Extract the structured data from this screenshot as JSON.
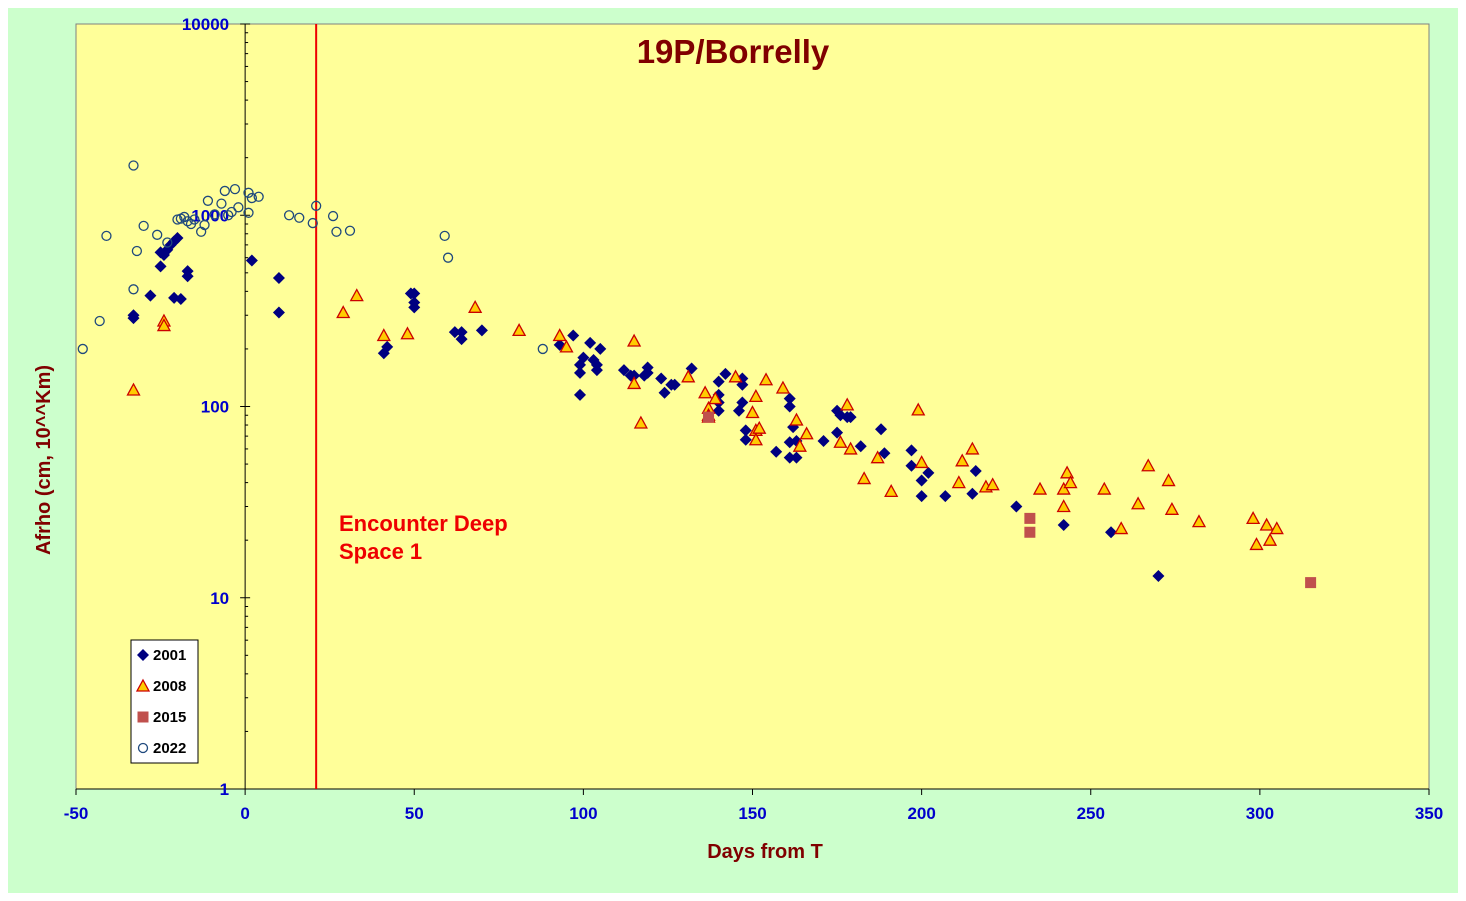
{
  "chart_data": {
    "type": "scatter",
    "title": "19P/Borrelly",
    "xlabel": "Days from  T",
    "ylabel": "Afrho (cm, 10^^Km)",
    "xlim": [
      -50,
      350
    ],
    "ylim": [
      1,
      10000
    ],
    "yscale": "log",
    "x_ticks": [
      -50,
      0,
      50,
      100,
      150,
      200,
      250,
      300,
      350
    ],
    "y_ticks": [
      1,
      10,
      100,
      1000,
      10000
    ],
    "x_tick_labels": [
      "-50",
      "0",
      "50",
      "100",
      "150",
      "200",
      "250",
      "300",
      "350"
    ],
    "y_tick_labels": [
      "1",
      "10",
      "100",
      "1000",
      "10000"
    ],
    "grid": false,
    "legend_position": "bottom-left",
    "plot_bg": "#ffff99",
    "outer_bg": "#ccffcc",
    "vline": {
      "x": 21,
      "label_line1": "Encounter Deep",
      "label_line2": "Space 1",
      "color": "#ee0000"
    },
    "series": [
      {
        "name": "2001",
        "marker": "diamond",
        "color": "#000080",
        "points": [
          [
            -33,
            290
          ],
          [
            -33,
            300
          ],
          [
            -28,
            380
          ],
          [
            -25,
            540
          ],
          [
            -25,
            640
          ],
          [
            -24,
            620
          ],
          [
            -23,
            660
          ],
          [
            -22,
            700
          ],
          [
            -21,
            730
          ],
          [
            -21,
            370
          ],
          [
            -20,
            760
          ],
          [
            -19,
            365
          ],
          [
            -17,
            510
          ],
          [
            -17,
            480
          ],
          [
            2,
            580
          ],
          [
            10,
            470
          ],
          [
            10,
            310
          ],
          [
            41,
            190
          ],
          [
            42,
            205
          ],
          [
            49,
            390
          ],
          [
            50,
            390
          ],
          [
            50,
            350
          ],
          [
            50,
            330
          ],
          [
            62,
            245
          ],
          [
            64,
            245
          ],
          [
            64,
            225
          ],
          [
            70,
            250
          ],
          [
            93,
            210
          ],
          [
            97,
            235
          ],
          [
            99,
            115
          ],
          [
            99,
            150
          ],
          [
            99,
            165
          ],
          [
            100,
            180
          ],
          [
            102,
            215
          ],
          [
            103,
            175
          ],
          [
            104,
            165
          ],
          [
            104,
            155
          ],
          [
            105,
            200
          ],
          [
            112,
            155
          ],
          [
            114,
            145
          ],
          [
            115,
            145
          ],
          [
            118,
            145
          ],
          [
            119,
            160
          ],
          [
            119,
            150
          ],
          [
            123,
            140
          ],
          [
            124,
            118
          ],
          [
            126,
            130
          ],
          [
            127,
            130
          ],
          [
            132,
            158
          ],
          [
            140,
            95
          ],
          [
            140,
            115
          ],
          [
            140,
            135
          ],
          [
            140,
            105
          ],
          [
            142,
            148
          ],
          [
            146,
            95
          ],
          [
            147,
            140
          ],
          [
            147,
            130
          ],
          [
            147,
            105
          ],
          [
            148,
            75
          ],
          [
            148,
            67
          ],
          [
            157,
            58
          ],
          [
            161,
            54
          ],
          [
            161,
            110
          ],
          [
            161,
            100
          ],
          [
            161,
            65
          ],
          [
            162,
            78
          ],
          [
            163,
            54
          ],
          [
            163,
            66
          ],
          [
            171,
            66
          ],
          [
            175,
            95
          ],
          [
            175,
            73
          ],
          [
            176,
            90
          ],
          [
            178,
            88
          ],
          [
            179,
            88
          ],
          [
            182,
            62
          ],
          [
            188,
            76
          ],
          [
            189,
            57
          ],
          [
            197,
            59
          ],
          [
            197,
            49
          ],
          [
            200,
            41
          ],
          [
            200,
            34
          ],
          [
            202,
            45
          ],
          [
            207,
            34
          ],
          [
            215,
            35
          ],
          [
            216,
            46
          ],
          [
            228,
            30
          ],
          [
            242,
            24
          ],
          [
            256,
            22
          ],
          [
            270,
            13
          ]
        ]
      },
      {
        "name": "2008",
        "marker": "triangle",
        "color": "#cc0000",
        "fill": "#ffcc00",
        "points": [
          [
            -33,
            122
          ],
          [
            -24,
            280
          ],
          [
            -24,
            265
          ],
          [
            29,
            310
          ],
          [
            33,
            380
          ],
          [
            41,
            235
          ],
          [
            48,
            240
          ],
          [
            68,
            330
          ],
          [
            81,
            250
          ],
          [
            93,
            235
          ],
          [
            95,
            205
          ],
          [
            115,
            220
          ],
          [
            115,
            132
          ],
          [
            117,
            82
          ],
          [
            131,
            143
          ],
          [
            136,
            118
          ],
          [
            137,
            98
          ],
          [
            137,
            90
          ],
          [
            137,
            88
          ],
          [
            139,
            110
          ],
          [
            145,
            143
          ],
          [
            150,
            93
          ],
          [
            151,
            75
          ],
          [
            151,
            113
          ],
          [
            151,
            67
          ],
          [
            152,
            77
          ],
          [
            154,
            138
          ],
          [
            159,
            125
          ],
          [
            163,
            85
          ],
          [
            164,
            62
          ],
          [
            166,
            72
          ],
          [
            176,
            65
          ],
          [
            178,
            102
          ],
          [
            179,
            60
          ],
          [
            183,
            42
          ],
          [
            187,
            54
          ],
          [
            191,
            36
          ],
          [
            199,
            96
          ],
          [
            200,
            51
          ],
          [
            211,
            40
          ],
          [
            212,
            52
          ],
          [
            215,
            60
          ],
          [
            219,
            38
          ],
          [
            221,
            39
          ],
          [
            235,
            37
          ],
          [
            242,
            30
          ],
          [
            242,
            37
          ],
          [
            243,
            45
          ],
          [
            244,
            40
          ],
          [
            254,
            37
          ],
          [
            259,
            23
          ],
          [
            264,
            31
          ],
          [
            267,
            49
          ],
          [
            273,
            41
          ],
          [
            274,
            29
          ],
          [
            282,
            25
          ],
          [
            298,
            26
          ],
          [
            299,
            19
          ],
          [
            302,
            24
          ],
          [
            303,
            20
          ],
          [
            305,
            23
          ]
        ]
      },
      {
        "name": "2015",
        "marker": "square",
        "color": "#c0504d",
        "points": [
          [
            137,
            88
          ],
          [
            232,
            22
          ],
          [
            232,
            26
          ],
          [
            315,
            12
          ]
        ]
      },
      {
        "name": "2022",
        "marker": "circle-open",
        "color": "#1f497d",
        "points": [
          [
            -48,
            200
          ],
          [
            -43,
            280
          ],
          [
            -41,
            780
          ],
          [
            -33,
            1820
          ],
          [
            -33,
            410
          ],
          [
            -32,
            650
          ],
          [
            -30,
            880
          ],
          [
            -26,
            790
          ],
          [
            -23,
            720
          ],
          [
            -20,
            950
          ],
          [
            -19,
            960
          ],
          [
            -18,
            980
          ],
          [
            -17,
            930
          ],
          [
            -16,
            900
          ],
          [
            -15,
            950
          ],
          [
            -13,
            820
          ],
          [
            -12,
            890
          ],
          [
            -11,
            1190
          ],
          [
            -9,
            1010
          ],
          [
            -7,
            1150
          ],
          [
            -6,
            1340
          ],
          [
            -5,
            1000
          ],
          [
            -4,
            1040
          ],
          [
            -3,
            1370
          ],
          [
            -2,
            1100
          ],
          [
            1,
            1310
          ],
          [
            1,
            1030
          ],
          [
            2,
            1230
          ],
          [
            4,
            1250
          ],
          [
            13,
            1000
          ],
          [
            16,
            970
          ],
          [
            20,
            910
          ],
          [
            21,
            1120
          ],
          [
            26,
            990
          ],
          [
            27,
            820
          ],
          [
            31,
            830
          ],
          [
            59,
            780
          ],
          [
            60,
            600
          ],
          [
            88,
            200
          ]
        ]
      }
    ]
  }
}
